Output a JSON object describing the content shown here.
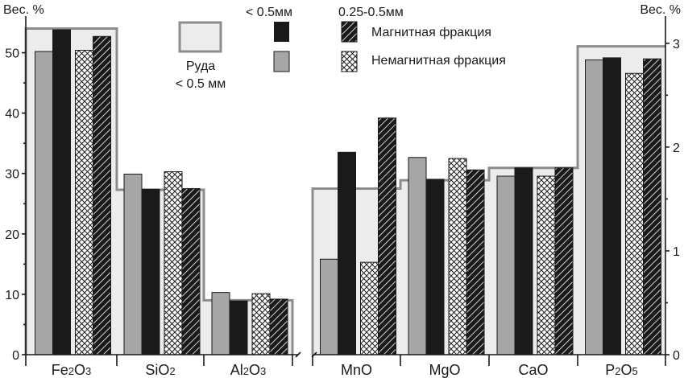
{
  "chart_data": {
    "type": "bar",
    "left_axis": {
      "label": "Вес. %",
      "ylim": [
        0,
        55
      ],
      "ticks": [
        "0",
        "10",
        "20",
        "30",
        "40",
        "50"
      ]
    },
    "right_axis": {
      "label": "Вес. %",
      "ylim": [
        0,
        3.2
      ],
      "ticks": [
        "0",
        "1",
        "2",
        "3"
      ]
    },
    "groups": [
      {
        "name": "Fe2O3",
        "label_main": "Fe",
        "label_sub1": "2",
        "label_mid": "O",
        "label_sub2": "3",
        "axis": "left",
        "ore": 54,
        "values": [
          50.2,
          53.8,
          50.4,
          52.7
        ]
      },
      {
        "name": "SiO2",
        "label_main": "SiO",
        "label_sub1": "2",
        "label_mid": "",
        "label_sub2": "",
        "axis": "left",
        "ore": 27.3,
        "values": [
          29.9,
          27.4,
          30.3,
          27.5
        ]
      },
      {
        "name": "Al2O3",
        "label_main": "Al",
        "label_sub1": "2",
        "label_mid": "O",
        "label_sub2": "3",
        "axis": "left",
        "ore": 9.0,
        "values": [
          10.3,
          8.9,
          10.1,
          9.2
        ]
      },
      {
        "name": "MnO",
        "label_main": "MnO",
        "label_sub1": "",
        "label_mid": "",
        "label_sub2": "",
        "axis": "right",
        "ore": 1.6,
        "values": [
          0.92,
          1.95,
          0.89,
          2.28
        ]
      },
      {
        "name": "MgO",
        "label_main": "MgO",
        "label_sub1": "",
        "label_mid": "",
        "label_sub2": "",
        "axis": "right",
        "ore": 1.68,
        "values": [
          1.9,
          1.69,
          1.89,
          1.78
        ]
      },
      {
        "name": "CaO",
        "label_main": "CaO",
        "label_sub1": "",
        "label_mid": "",
        "label_sub2": "",
        "axis": "right",
        "ore": 1.8,
        "values": [
          1.72,
          1.8,
          1.72,
          1.8
        ]
      },
      {
        "name": "P2O5",
        "label_main": "P",
        "label_sub1": "2",
        "label_mid": "O",
        "label_sub2": "5",
        "axis": "right",
        "ore": 2.97,
        "values": [
          2.84,
          2.86,
          2.71,
          2.85
        ]
      }
    ],
    "series_order": [
      "nonmag_lt05",
      "mag_lt05",
      "nonmag_025_05",
      "mag_025_05"
    ],
    "legend": {
      "ore_line1": "Руда",
      "ore_line2": "< 0.5 мм",
      "size_lt05": "< 0.5мм",
      "size_025_05": "0.25-0.5мм",
      "magnetic": "Магнитная фракция",
      "nonmagnetic": "Немагнитная фракция"
    },
    "colors": {
      "nonmag_lt05": "#a6a6a6",
      "mag_lt05": "#1a1a1a",
      "ore_fill": "#ececec",
      "ore_line": "#8c8c8c"
    }
  }
}
